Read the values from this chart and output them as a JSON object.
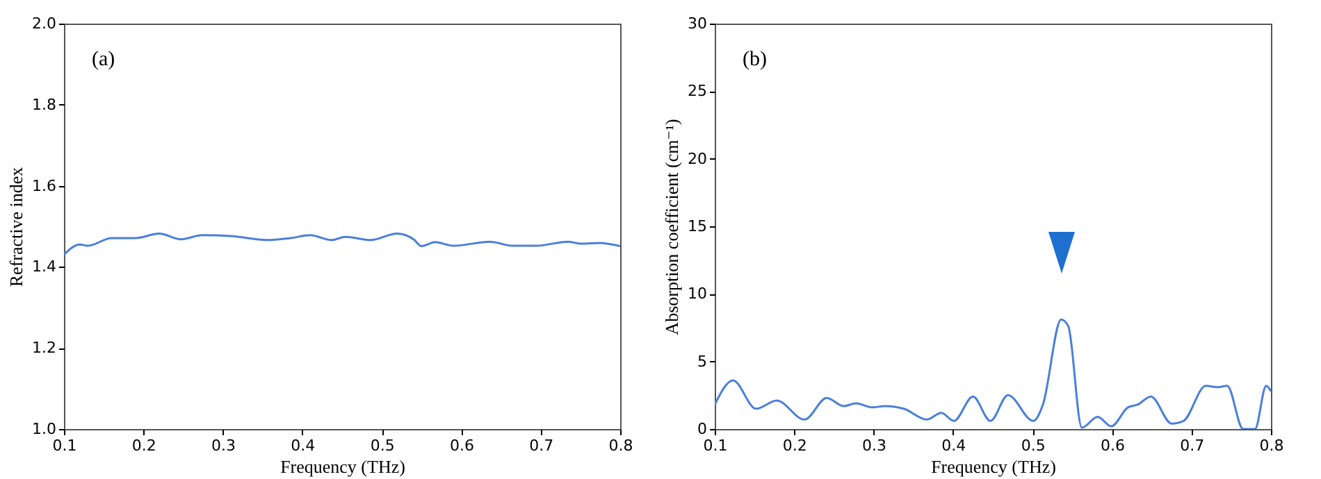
{
  "chart_data": [
    {
      "type": "line",
      "annotations": [
        "(a)"
      ],
      "xlabel": "Frequency (THz)",
      "ylabel": "Refractive index",
      "xlim": [
        0.1,
        0.8
      ],
      "ylim": [
        1.0,
        2.0
      ],
      "xticks": [
        0.1,
        0.2,
        0.3,
        0.4,
        0.5,
        0.6,
        0.7,
        0.8
      ],
      "yticks": [
        {
          "value": 1.0,
          "label": "1.0"
        },
        1.2,
        1.4,
        1.6,
        1.8,
        {
          "value": 2.0,
          "label": "2.0"
        }
      ],
      "x": [
        0.1,
        0.12,
        0.13,
        0.16,
        0.19,
        0.22,
        0.247,
        0.274,
        0.31,
        0.355,
        0.385,
        0.41,
        0.437,
        0.454,
        0.486,
        0.519,
        0.54,
        0.55,
        0.567,
        0.59,
        0.636,
        0.665,
        0.694,
        0.734,
        0.751,
        0.774,
        0.8
      ],
      "series": [
        {
          "color": "#4a7fdc",
          "values": [
            1.43,
            1.455,
            1.452,
            1.471,
            1.471,
            1.482,
            1.468,
            1.478,
            1.476,
            1.466,
            1.471,
            1.478,
            1.466,
            1.474,
            1.466,
            1.482,
            1.468,
            1.451,
            1.461,
            1.452,
            1.462,
            1.452,
            1.452,
            1.462,
            1.457,
            1.459,
            1.451
          ]
        }
      ]
    },
    {
      "type": "line",
      "annotations": [
        "(b)"
      ],
      "xlabel": "Frequency (THz)",
      "ylabel": "Absorption coefficient (cm⁻¹)",
      "xlim": [
        0.1,
        0.8
      ],
      "ylim": [
        0,
        30
      ],
      "xticks": [
        0.1,
        0.2,
        0.3,
        0.4,
        0.5,
        0.6,
        0.7,
        0.8
      ],
      "yticks": [
        0,
        5,
        10,
        15,
        20,
        25,
        30
      ],
      "x": [
        0.1,
        0.123,
        0.152,
        0.178,
        0.213,
        0.241,
        0.262,
        0.278,
        0.298,
        0.315,
        0.338,
        0.367,
        0.385,
        0.401,
        0.425,
        0.447,
        0.469,
        0.501,
        0.513,
        0.536,
        0.545,
        0.562,
        0.582,
        0.599,
        0.62,
        0.632,
        0.649,
        0.675,
        0.69,
        0.718,
        0.733,
        0.745,
        0.765,
        0.78,
        0.794,
        0.8
      ],
      "series": [
        {
          "color": "#4a7fdc",
          "values": [
            1.8,
            3.6,
            1.5,
            2.1,
            0.7,
            2.3,
            1.7,
            1.9,
            1.6,
            1.7,
            1.5,
            0.7,
            1.2,
            0.6,
            2.4,
            0.6,
            2.5,
            0.6,
            1.8,
            8.1,
            7.6,
            0.1,
            0.9,
            0.2,
            1.6,
            1.8,
            2.4,
            0.4,
            0.6,
            3.2,
            3.1,
            3.2,
            0,
            0,
            3.2,
            2.8
          ]
        }
      ]
    }
  ]
}
